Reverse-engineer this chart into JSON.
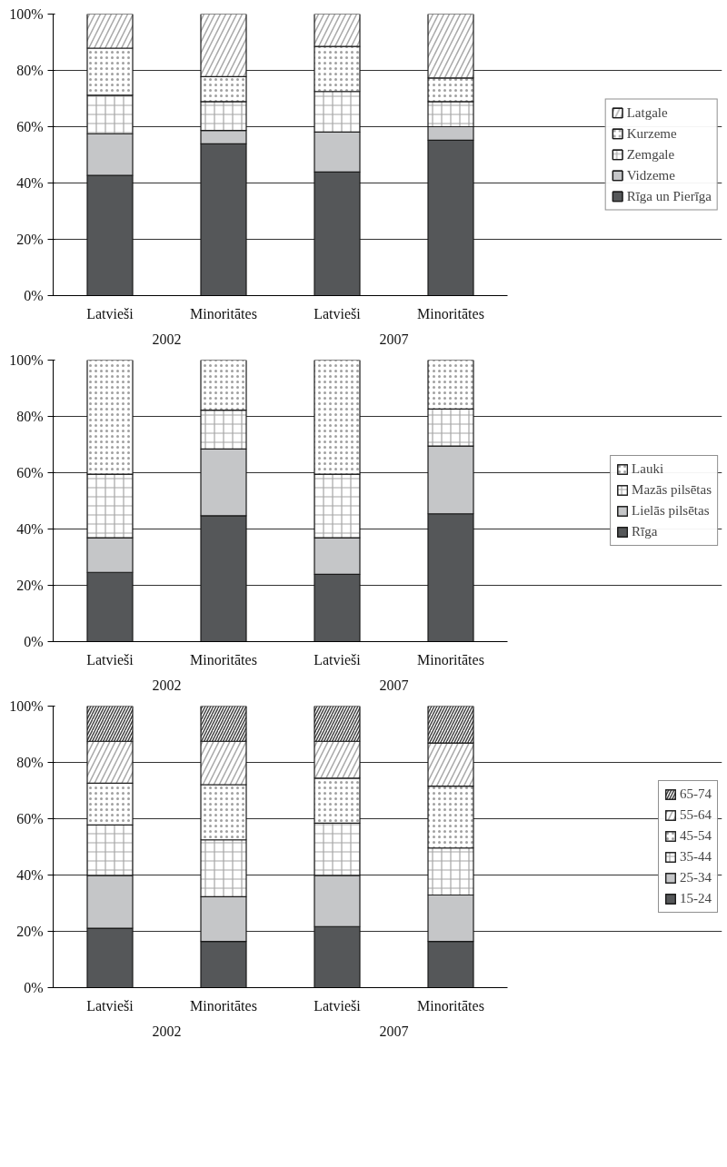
{
  "chart_data": [
    {
      "type": "bar",
      "stacked": true,
      "categories": [
        "Latvieši",
        "Minoritātes",
        "Latvieši",
        "Minoritātes"
      ],
      "annotations": [
        "2002",
        "2007"
      ],
      "ylim": [
        0,
        100
      ],
      "yticks": [
        {
          "value": 0,
          "label": "0%"
        },
        {
          "value": 20,
          "label": "20%"
        },
        {
          "value": 40,
          "label": "40%"
        },
        {
          "value": 60,
          "label": "60%"
        },
        {
          "value": 80,
          "label": "80%"
        },
        {
          "value": 100,
          "label": "100%"
        }
      ],
      "grid": "y",
      "legend": "right",
      "series": [
        {
          "name": "Rīga un Pierīga",
          "color": "#555759",
          "values": [
            42.7,
            53.9,
            43.9,
            55.2
          ]
        },
        {
          "name": "Vidzeme",
          "color": "#c5c6c8",
          "values": [
            14.8,
            4.8,
            14.2,
            4.8
          ]
        },
        {
          "name": "Zemgale",
          "color": "#ffffff",
          "values": [
            13.7,
            10.2,
            14.4,
            8.9
          ]
        },
        {
          "name": "Kurzeme",
          "color": "#ffffff",
          "values": [
            16.7,
            8.9,
            16.0,
            8.4
          ]
        },
        {
          "name": "Latgale",
          "color": "#ffffff",
          "values": [
            12.1,
            22.2,
            11.5,
            22.7
          ]
        }
      ]
    },
    {
      "type": "bar",
      "stacked": true,
      "categories": [
        "Latvieši",
        "Minoritātes",
        "Latvieši",
        "Minoritātes"
      ],
      "annotations": [
        "2002",
        "2007"
      ],
      "ylim": [
        0,
        100
      ],
      "yticks": [
        {
          "value": 0,
          "label": "0%"
        },
        {
          "value": 20,
          "label": "20%"
        },
        {
          "value": 40,
          "label": "40%"
        },
        {
          "value": 60,
          "label": "60%"
        },
        {
          "value": 80,
          "label": "80%"
        },
        {
          "value": 100,
          "label": "100%"
        }
      ],
      "grid": "y",
      "legend": "right",
      "series": [
        {
          "name": "Rīga",
          "color": "#555759",
          "values": [
            24.6,
            44.7,
            23.9,
            45.4
          ]
        },
        {
          "name": "Lielās pilsētas",
          "color": "#c5c6c8",
          "values": [
            12.3,
            23.7,
            13.0,
            24.1
          ]
        },
        {
          "name": "Mazās pilsētas",
          "color": "#ffffff",
          "values": [
            22.6,
            13.8,
            22.6,
            13.1
          ]
        },
        {
          "name": "Lauki",
          "color": "#ffffff",
          "values": [
            40.5,
            17.8,
            40.5,
            17.4
          ]
        }
      ]
    },
    {
      "type": "bar",
      "stacked": true,
      "categories": [
        "Latvieši",
        "Minoritātes",
        "Latvieši",
        "Minoritātes"
      ],
      "annotations": [
        "2002",
        "2007"
      ],
      "ylim": [
        0,
        100
      ],
      "yticks": [
        {
          "value": 0,
          "label": "0%"
        },
        {
          "value": 20,
          "label": "20%"
        },
        {
          "value": 40,
          "label": "40%"
        },
        {
          "value": 60,
          "label": "60%"
        },
        {
          "value": 80,
          "label": "80%"
        },
        {
          "value": 100,
          "label": "100%"
        }
      ],
      "grid": "y",
      "legend": "right",
      "series": [
        {
          "name": "15-24",
          "color": "#555759",
          "values": [
            21.1,
            16.4,
            21.7,
            16.4
          ]
        },
        {
          "name": "25-34",
          "color": "#c5c6c8",
          "values": [
            18.8,
            15.9,
            18.2,
            16.5
          ]
        },
        {
          "name": "35-44",
          "color": "#ffffff",
          "values": [
            17.9,
            20.2,
            18.5,
            16.7
          ]
        },
        {
          "name": "45-54",
          "color": "#ffffff",
          "values": [
            14.8,
            19.6,
            16.0,
            22.0
          ]
        },
        {
          "name": "55-64",
          "color": "#ffffff",
          "values": [
            14.9,
            15.4,
            13.1,
            15.3
          ]
        },
        {
          "name": "65-74",
          "color": "#ffffff",
          "values": [
            12.5,
            12.5,
            12.5,
            13.1
          ]
        }
      ]
    }
  ]
}
